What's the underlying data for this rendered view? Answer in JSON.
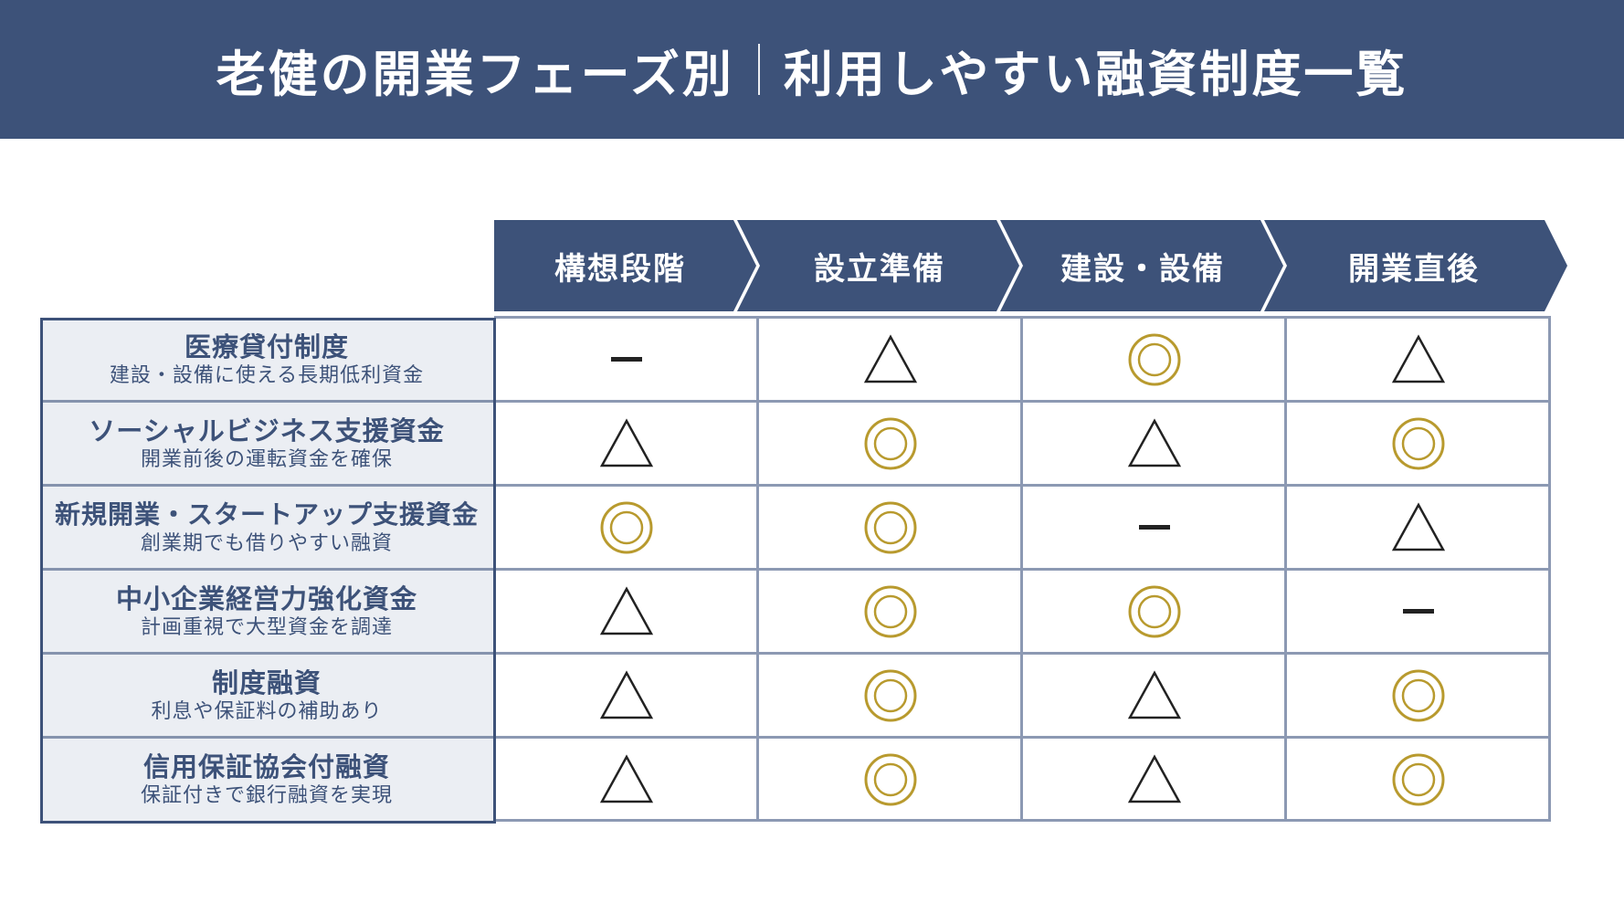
{
  "header": {
    "title_left": "老健の開業フェーズ別",
    "title_right": "利用しやすい融資制度一覧",
    "background": "#3d5279"
  },
  "phases": [
    {
      "label": "構想段階"
    },
    {
      "label": "設立準備"
    },
    {
      "label": "建設・設備"
    },
    {
      "label": "開業直後"
    }
  ],
  "legend_symbols": {
    "double_circle": "◎",
    "triangle": "△",
    "dash": "—"
  },
  "colors": {
    "navy": "#3d5279",
    "gold": "#b89a2e",
    "label_bg": "#ebeef3",
    "grid": "#8c99b3",
    "symbol_dark": "#222222"
  },
  "rows": [
    {
      "name": "医療貸付制度",
      "description": "建設・設備に使える長期低利資金",
      "marks": [
        "dash",
        "triangle",
        "double_circle",
        "triangle"
      ]
    },
    {
      "name": "ソーシャルビジネス支援資金",
      "description": "開業前後の運転資金を確保",
      "marks": [
        "triangle",
        "double_circle",
        "triangle",
        "double_circle"
      ]
    },
    {
      "name": "新規開業・スタートアップ支援資金",
      "description": "創業期でも借りやすい融資",
      "marks": [
        "double_circle",
        "double_circle",
        "dash",
        "triangle"
      ]
    },
    {
      "name": "中小企業経営力強化資金",
      "description": "計画重視で大型資金を調達",
      "marks": [
        "triangle",
        "double_circle",
        "double_circle",
        "dash"
      ]
    },
    {
      "name": "制度融資",
      "description": "利息や保証料の補助あり",
      "marks": [
        "triangle",
        "double_circle",
        "triangle",
        "double_circle"
      ]
    },
    {
      "name": "信用保証協会付融資",
      "description": "保証付きで銀行融資を実現",
      "marks": [
        "triangle",
        "double_circle",
        "triangle",
        "double_circle"
      ]
    }
  ]
}
